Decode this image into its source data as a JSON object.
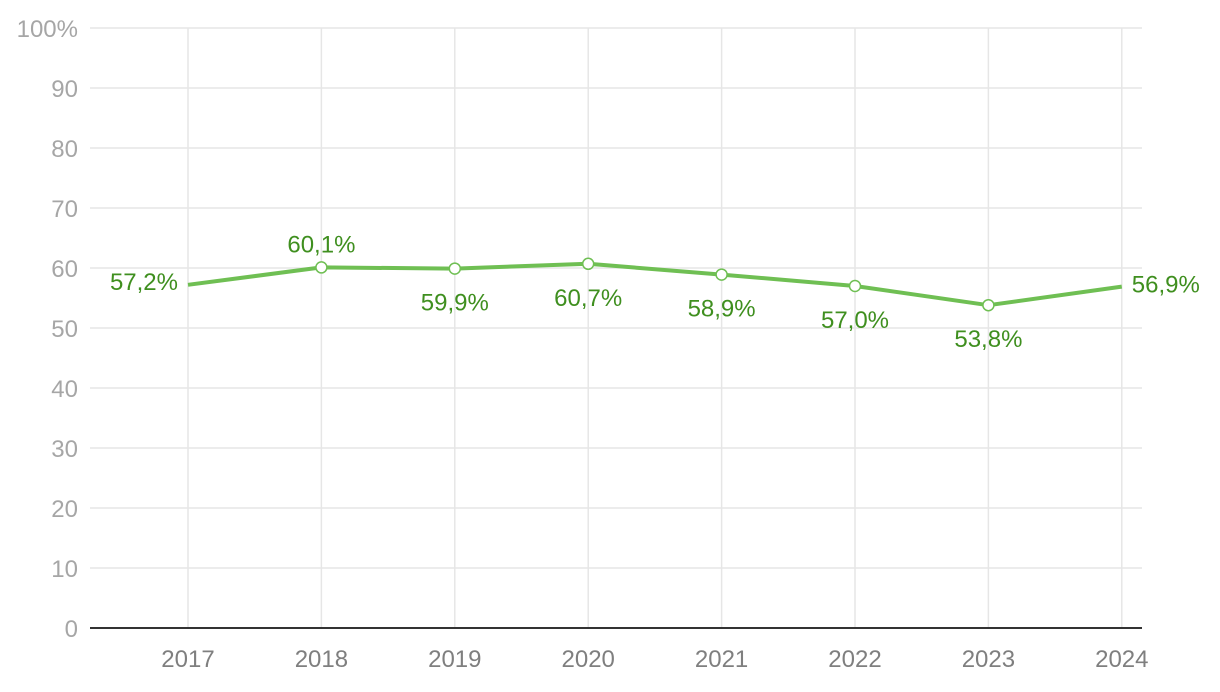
{
  "chart_data": {
    "type": "line",
    "title": "",
    "xlabel": "",
    "ylabel": "",
    "categories": [
      "2017",
      "2018",
      "2019",
      "2020",
      "2021",
      "2022",
      "2023",
      "2024"
    ],
    "series": [
      {
        "values": [
          57.2,
          60.1,
          59.9,
          60.7,
          58.9,
          57.0,
          53.8,
          56.9
        ],
        "labels": [
          "57,2%",
          "60,1%",
          "59,9%",
          "60,7%",
          "58,9%",
          "57,0%",
          "53,8%",
          "56,9%"
        ],
        "label_positions": [
          "left",
          "above",
          "below",
          "below",
          "below",
          "below",
          "below",
          "right"
        ],
        "color": "#6fbf53",
        "label_color": "#3f8f1f",
        "markers": [
          false,
          true,
          true,
          true,
          true,
          true,
          true,
          false
        ]
      }
    ],
    "y_ticks": [
      "0",
      "10",
      "20",
      "30",
      "40",
      "50",
      "60",
      "70",
      "80",
      "90",
      "100%"
    ],
    "ylim": [
      0,
      100
    ],
    "grid": true,
    "legend": "none",
    "colors": {
      "grid": "#e6e6e6",
      "axis": "#333333"
    }
  }
}
